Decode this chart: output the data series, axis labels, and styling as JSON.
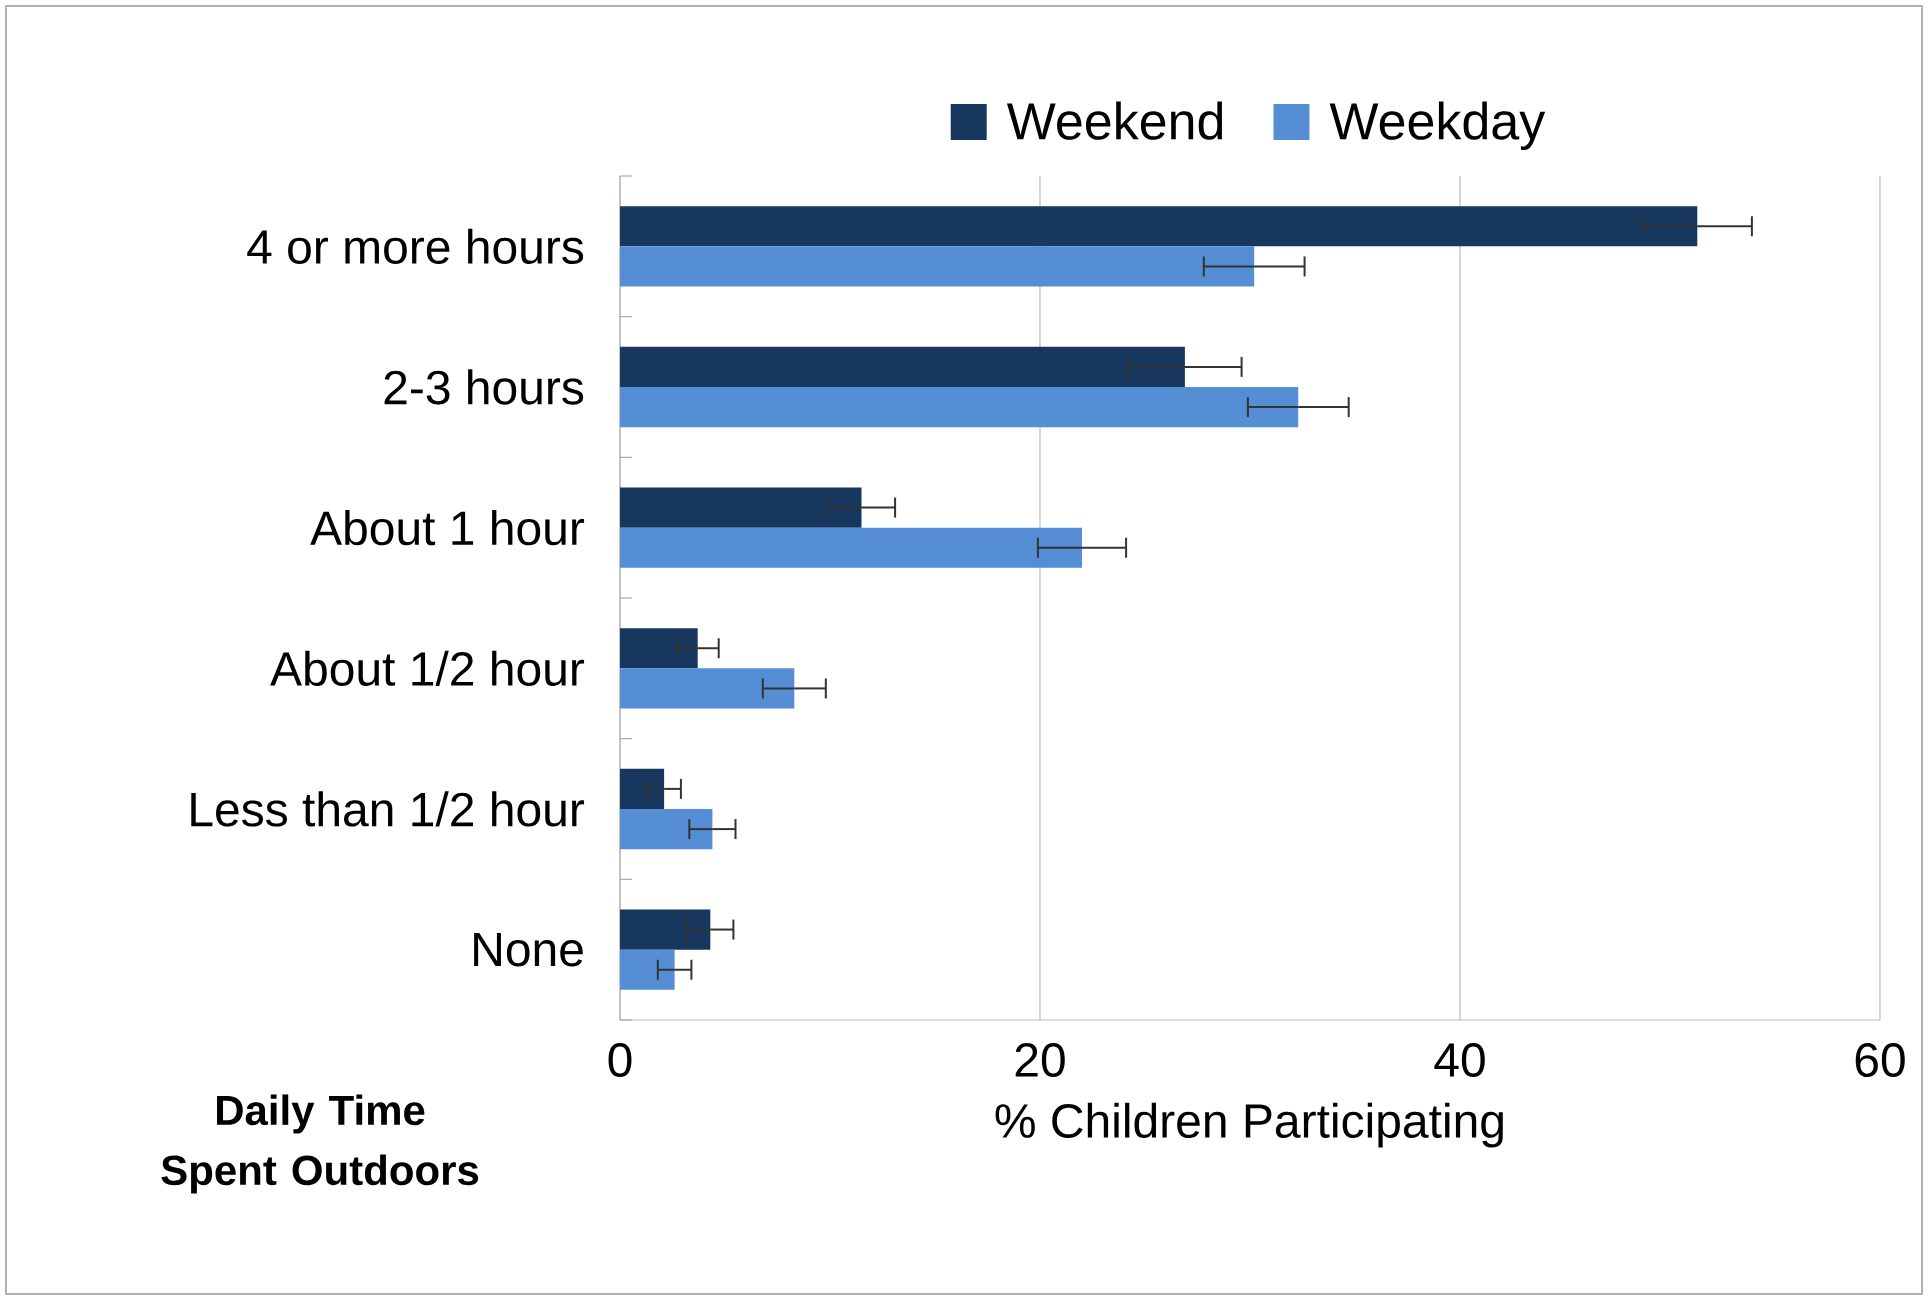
{
  "chart_data": {
    "type": "bar",
    "orientation": "horizontal",
    "categories": [
      "4 or more hours",
      "2-3 hours",
      "About 1 hour",
      "About 1/2 hour",
      "Less than 1/2 hour",
      "None"
    ],
    "series": [
      {
        "name": "Weekend",
        "color": "#17375e",
        "values": [
          51.3,
          26.9,
          11.5,
          3.7,
          2.1,
          4.3
        ],
        "errors": [
          2.6,
          2.7,
          1.6,
          1.0,
          0.8,
          1.1
        ]
      },
      {
        "name": "Weekday",
        "color": "#558ed5",
        "values": [
          30.2,
          32.3,
          22.0,
          8.3,
          4.4,
          2.6
        ],
        "errors": [
          2.4,
          2.4,
          2.1,
          1.5,
          1.1,
          0.8
        ]
      }
    ],
    "xlabel": "% Children Participating",
    "ylabel": "Daily Time Spent Outdoors",
    "xlim": [
      0,
      60
    ],
    "xticks": [
      0,
      20,
      40,
      60
    ],
    "grid": "x",
    "legend": "top"
  }
}
